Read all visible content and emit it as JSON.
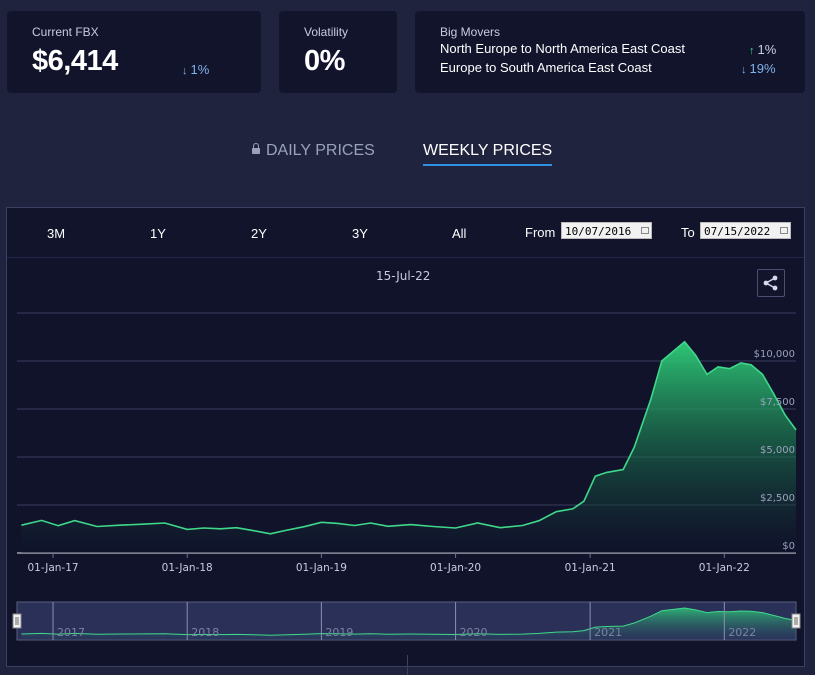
{
  "stats": {
    "fbx": {
      "label": "Current FBX",
      "value": "$6,414",
      "change": "1%",
      "direction": "down"
    },
    "volatility": {
      "label": "Volatility",
      "value": "0%"
    },
    "movers": {
      "label": "Big Movers",
      "items": [
        {
          "name": "North Europe to North America East Coast",
          "change": "1%",
          "direction": "up"
        },
        {
          "name": "Europe to South America East Coast",
          "change": "19%",
          "direction": "down"
        }
      ]
    }
  },
  "tabs": {
    "daily": "DAILY PRICES",
    "weekly": "WEEKLY PRICES",
    "active": "weekly"
  },
  "range_buttons": [
    "3M",
    "1Y",
    "2Y",
    "3Y",
    "All"
  ],
  "date_filter": {
    "from_label": "From",
    "from_value": "10/07/2016",
    "to_label": "To",
    "to_value": "07/15/2022"
  },
  "hover_date": "15-Jul-22",
  "icons": {
    "lock": "lock-icon",
    "share": "share-icon",
    "calendar": "calendar-icon",
    "arrow_up": "arrow-up-icon",
    "arrow_down": "arrow-down-icon"
  },
  "colors": {
    "line": "#3fd88a",
    "accent": "#2f8fe0",
    "down": "#7fb2ea",
    "up": "#3fd88a"
  },
  "chart_data": {
    "type": "area",
    "series": [
      {
        "values": [
          [
            "2016-10-07",
            1450
          ],
          [
            "2016-12-01",
            1700
          ],
          [
            "2017-01-15",
            1420
          ],
          [
            "2017-03-01",
            1690
          ],
          [
            "2017-05-01",
            1380
          ],
          [
            "2017-07-01",
            1450
          ],
          [
            "2017-09-01",
            1500
          ],
          [
            "2017-11-01",
            1560
          ],
          [
            "2018-01-01",
            1230
          ],
          [
            "2018-02-15",
            1300
          ],
          [
            "2018-04-01",
            1260
          ],
          [
            "2018-05-15",
            1320
          ],
          [
            "2018-07-01",
            1160
          ],
          [
            "2018-08-15",
            1000
          ],
          [
            "2018-10-01",
            1200
          ],
          [
            "2018-11-15",
            1370
          ],
          [
            "2019-01-01",
            1600
          ],
          [
            "2019-02-15",
            1540
          ],
          [
            "2019-04-01",
            1430
          ],
          [
            "2019-05-15",
            1560
          ],
          [
            "2019-07-01",
            1390
          ],
          [
            "2019-09-01",
            1480
          ],
          [
            "2019-11-01",
            1380
          ],
          [
            "2020-01-01",
            1300
          ],
          [
            "2020-03-01",
            1560
          ],
          [
            "2020-05-01",
            1320
          ],
          [
            "2020-07-01",
            1430
          ],
          [
            "2020-08-15",
            1680
          ],
          [
            "2020-10-01",
            2150
          ],
          [
            "2020-11-15",
            2300
          ],
          [
            "2020-12-15",
            2700
          ],
          [
            "2021-01-15",
            4000
          ],
          [
            "2021-02-15",
            4200
          ],
          [
            "2021-04-01",
            4350
          ],
          [
            "2021-05-01",
            5500
          ],
          [
            "2021-06-15",
            8000
          ],
          [
            "2021-07-15",
            10000
          ],
          [
            "2021-08-15",
            10500
          ],
          [
            "2021-09-15",
            11000
          ],
          [
            "2021-10-15",
            10300
          ],
          [
            "2021-11-15",
            9300
          ],
          [
            "2021-12-15",
            9700
          ],
          [
            "2022-01-15",
            9600
          ],
          [
            "2022-02-15",
            9900
          ],
          [
            "2022-03-15",
            9800
          ],
          [
            "2022-04-15",
            9300
          ],
          [
            "2022-05-15",
            8300
          ],
          [
            "2022-06-15",
            7200
          ],
          [
            "2022-07-15",
            6414
          ]
        ]
      }
    ],
    "x_ticks": [
      "01-Jan-17",
      "01-Jan-18",
      "01-Jan-19",
      "01-Jan-20",
      "01-Jan-21",
      "01-Jan-22"
    ],
    "y_ticks": [
      "$0",
      "$2,500",
      "$5,000",
      "$7,500",
      "$10,000"
    ],
    "ylim": [
      0,
      12500
    ],
    "navigator_labels": [
      "2017",
      "2018",
      "2019",
      "2020",
      "2021",
      "2022"
    ],
    "grid": true
  }
}
